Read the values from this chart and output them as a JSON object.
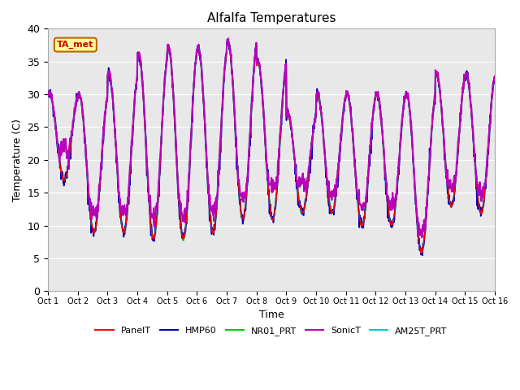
{
  "title": "Alfalfa Temperatures",
  "xlabel": "Time",
  "ylabel": "Temperature (C)",
  "ylim": [
    0,
    40
  ],
  "xlim": [
    0,
    360
  ],
  "annotation_text": "TA_met",
  "annotation_facecolor": "#FFFF99",
  "annotation_edgecolor": "#BB6600",
  "annotation_textcolor": "#CC0000",
  "bg_color": "#E8E8E8",
  "fig_color": "#FFFFFF",
  "series_order": [
    "AM25T_PRT",
    "NR01_PRT",
    "HMP60",
    "PanelT",
    "SonicT"
  ],
  "series": {
    "PanelT": {
      "color": "#FF0000",
      "lw": 1.0,
      "zorder": 4
    },
    "HMP60": {
      "color": "#0000BB",
      "lw": 1.2,
      "zorder": 3
    },
    "NR01_PRT": {
      "color": "#00CC00",
      "lw": 1.2,
      "zorder": 2
    },
    "SonicT": {
      "color": "#BB00BB",
      "lw": 1.5,
      "zorder": 5
    },
    "AM25T_PRT": {
      "color": "#00CCCC",
      "lw": 1.5,
      "zorder": 1
    }
  },
  "xtick_labels": [
    "Oct 1",
    "Oct 2",
    "Oct 3",
    "Oct 4",
    "Oct 5",
    "Oct 6",
    "Oct 7",
    "Oct 8",
    "Oct 9",
    "Oct 10",
    "Oct 11",
    "Oct 12",
    "Oct 13",
    "Oct 14",
    "Oct 15",
    "Oct 16"
  ],
  "xtick_positions": [
    0,
    24,
    48,
    72,
    96,
    120,
    144,
    168,
    192,
    216,
    240,
    264,
    288,
    312,
    336,
    360
  ],
  "legend_labels": [
    "PanelT",
    "HMP60",
    "NR01_PRT",
    "SonicT",
    "AM25T_PRT"
  ],
  "legend_colors": [
    "#FF0000",
    "#0000BB",
    "#00CC00",
    "#BB00BB",
    "#00CCCC"
  ],
  "day_peaks": [
    30,
    30,
    33,
    36,
    37,
    37,
    38,
    35,
    27,
    30,
    30,
    30,
    30,
    33,
    33
  ],
  "day_mins": [
    17,
    9,
    9,
    8,
    8,
    9,
    11,
    11,
    12,
    12,
    10,
    10,
    6,
    13,
    12
  ],
  "sonic_extra_day": [
    5,
    3,
    3,
    3,
    3,
    3,
    3,
    5,
    5,
    3,
    3,
    3,
    3,
    3,
    3
  ],
  "n_points": 1440
}
